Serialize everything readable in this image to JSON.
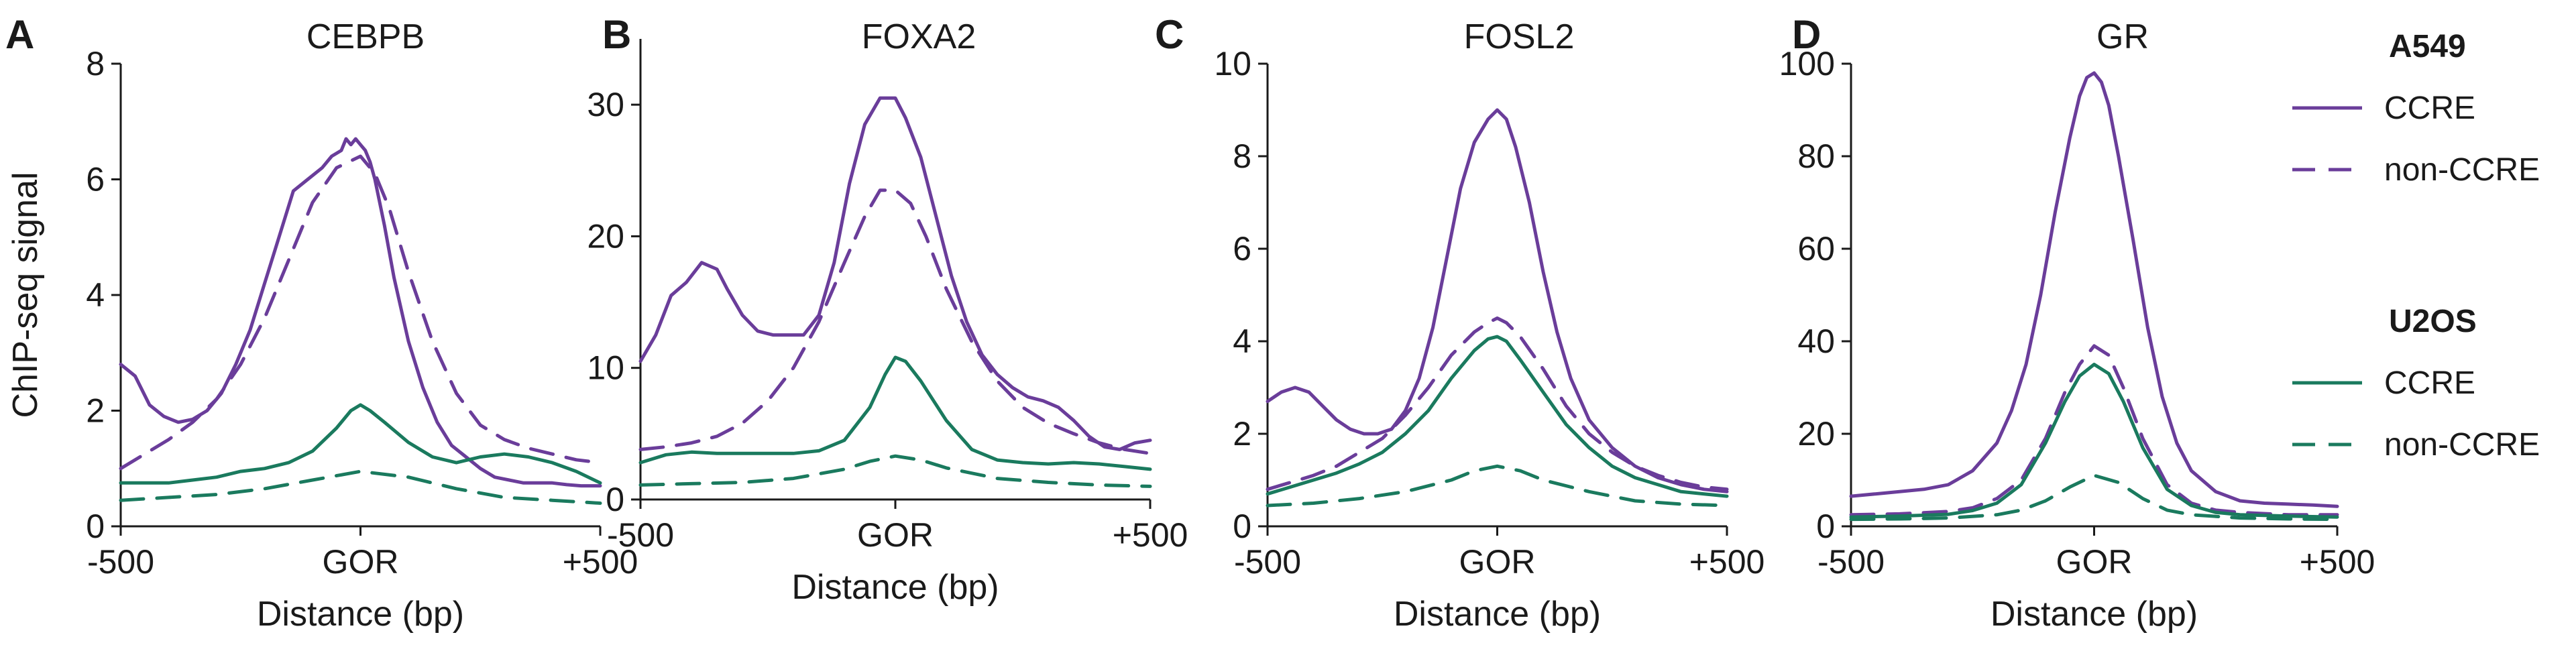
{
  "colors": {
    "A549": "#6a3d9a",
    "U2OS": "#1a7a5e",
    "axis": "#1a1a1a"
  },
  "legend": {
    "groups": [
      {
        "title": "A549",
        "color_key": "A549",
        "items": [
          {
            "label": "CCRE",
            "dash": "solid"
          },
          {
            "label": "non-CCRE",
            "dash": "dashed"
          }
        ]
      },
      {
        "title": "U2OS",
        "color_key": "U2OS",
        "items": [
          {
            "label": "CCRE",
            "dash": "solid"
          },
          {
            "label": "non-CCRE",
            "dash": "dashed"
          }
        ]
      }
    ]
  },
  "chart_data": [
    {
      "type": "line",
      "letter": "A",
      "title": "CEBPB",
      "xlabel": "Distance (bp)",
      "ylabel": "ChIP-seq signal",
      "xlim": [
        -500,
        500
      ],
      "ylim": [
        0,
        8
      ],
      "xticks": [
        -500,
        0,
        500
      ],
      "xtick_labels": [
        "-500",
        "GOR",
        "+500"
      ],
      "yticks": [
        0,
        2,
        4,
        6,
        8
      ],
      "ytick_labels": [
        "0",
        "2",
        "4",
        "6",
        "8"
      ],
      "series": [
        {
          "name": "A549 CCRE",
          "color_key": "A549",
          "dash": "solid",
          "x": [
            -500,
            -470,
            -440,
            -410,
            -380,
            -350,
            -320,
            -290,
            -260,
            -230,
            -200,
            -170,
            -140,
            -110,
            -80,
            -60,
            -40,
            -30,
            -20,
            -10,
            0,
            10,
            20,
            30,
            50,
            70,
            100,
            130,
            160,
            190,
            220,
            250,
            280,
            310,
            340,
            370,
            400,
            430,
            460,
            500
          ],
          "y": [
            2.8,
            2.6,
            2.1,
            1.9,
            1.8,
            1.85,
            2.0,
            2.3,
            2.8,
            3.4,
            4.2,
            5.0,
            5.8,
            6.0,
            6.2,
            6.4,
            6.5,
            6.7,
            6.6,
            6.7,
            6.6,
            6.5,
            6.3,
            6.0,
            5.2,
            4.3,
            3.2,
            2.4,
            1.8,
            1.4,
            1.2,
            1.0,
            0.85,
            0.8,
            0.75,
            0.75,
            0.75,
            0.72,
            0.7,
            0.7
          ]
        },
        {
          "name": "A549 non-CCRE",
          "color_key": "A549",
          "dash": "dashed",
          "x": [
            -500,
            -450,
            -400,
            -350,
            -300,
            -250,
            -200,
            -150,
            -100,
            -50,
            0,
            30,
            60,
            100,
            150,
            200,
            250,
            300,
            350,
            400,
            450,
            500
          ],
          "y": [
            1.0,
            1.25,
            1.5,
            1.8,
            2.2,
            2.8,
            3.6,
            4.6,
            5.6,
            6.2,
            6.4,
            6.1,
            5.5,
            4.4,
            3.2,
            2.3,
            1.75,
            1.5,
            1.35,
            1.25,
            1.15,
            1.1
          ]
        },
        {
          "name": "U2OS CCRE",
          "color_key": "U2OS",
          "dash": "solid",
          "x": [
            -500,
            -450,
            -400,
            -350,
            -300,
            -250,
            -200,
            -150,
            -100,
            -50,
            -20,
            0,
            20,
            50,
            100,
            150,
            200,
            250,
            300,
            350,
            400,
            450,
            500
          ],
          "y": [
            0.75,
            0.75,
            0.75,
            0.8,
            0.85,
            0.95,
            1.0,
            1.1,
            1.3,
            1.7,
            2.0,
            2.1,
            2.0,
            1.8,
            1.45,
            1.2,
            1.1,
            1.2,
            1.25,
            1.2,
            1.1,
            0.95,
            0.75
          ]
        },
        {
          "name": "U2OS non-CCRE",
          "color_key": "U2OS",
          "dash": "dashed",
          "x": [
            -500,
            -400,
            -300,
            -200,
            -100,
            0,
            100,
            200,
            300,
            400,
            500
          ],
          "y": [
            0.45,
            0.5,
            0.55,
            0.65,
            0.8,
            0.95,
            0.85,
            0.65,
            0.5,
            0.45,
            0.4
          ]
        }
      ]
    },
    {
      "type": "line",
      "letter": "B",
      "title": "FOXA2",
      "xlabel": "Distance (bp)",
      "ylabel": "",
      "xlim": [
        -500,
        500
      ],
      "ylim": [
        0,
        35
      ],
      "xticks": [
        -500,
        0,
        500
      ],
      "xtick_labels": [
        "-500",
        "GOR",
        "+500"
      ],
      "yticks": [
        0,
        10,
        20,
        30
      ],
      "ytick_labels": [
        "0",
        "10",
        "20",
        "30"
      ],
      "series": [
        {
          "name": "A549 CCRE",
          "color_key": "A549",
          "dash": "solid",
          "x": [
            -500,
            -470,
            -440,
            -410,
            -380,
            -350,
            -330,
            -300,
            -270,
            -240,
            -210,
            -180,
            -150,
            -120,
            -90,
            -60,
            -30,
            0,
            20,
            50,
            80,
            110,
            140,
            170,
            200,
            230,
            260,
            290,
            320,
            350,
            380,
            410,
            440,
            470,
            500
          ],
          "y": [
            10.5,
            12.5,
            15.5,
            16.5,
            18.0,
            17.5,
            16.0,
            14.0,
            12.8,
            12.5,
            12.5,
            12.5,
            14.0,
            18.0,
            24.0,
            28.5,
            30.5,
            30.5,
            29.0,
            26.0,
            21.5,
            17.0,
            13.5,
            11.0,
            9.5,
            8.5,
            7.8,
            7.5,
            7.0,
            6.0,
            4.8,
            4.0,
            3.8,
            4.3,
            4.5
          ]
        },
        {
          "name": "A549 non-CCRE",
          "color_key": "A549",
          "dash": "dashed",
          "x": [
            -500,
            -450,
            -400,
            -350,
            -300,
            -250,
            -200,
            -150,
            -100,
            -60,
            -30,
            0,
            30,
            60,
            100,
            150,
            200,
            250,
            300,
            350,
            400,
            450,
            500
          ],
          "y": [
            3.8,
            4.0,
            4.3,
            4.8,
            5.8,
            7.5,
            10.0,
            13.5,
            18.0,
            21.5,
            23.5,
            23.5,
            22.5,
            20.0,
            16.0,
            12.0,
            9.0,
            7.0,
            5.8,
            5.0,
            4.3,
            3.8,
            3.5
          ]
        },
        {
          "name": "U2OS CCRE",
          "color_key": "U2OS",
          "dash": "solid",
          "x": [
            -500,
            -450,
            -400,
            -350,
            -300,
            -250,
            -200,
            -150,
            -100,
            -50,
            -20,
            0,
            20,
            50,
            100,
            150,
            200,
            250,
            300,
            350,
            400,
            450,
            500
          ],
          "y": [
            2.8,
            3.4,
            3.6,
            3.5,
            3.5,
            3.5,
            3.5,
            3.7,
            4.5,
            7.0,
            9.5,
            10.8,
            10.5,
            9.0,
            6.0,
            3.8,
            3.0,
            2.8,
            2.7,
            2.8,
            2.7,
            2.5,
            2.3
          ]
        },
        {
          "name": "U2OS non-CCRE",
          "color_key": "U2OS",
          "dash": "dashed",
          "x": [
            -500,
            -400,
            -300,
            -200,
            -100,
            -50,
            0,
            50,
            100,
            200,
            300,
            400,
            500
          ],
          "y": [
            1.1,
            1.2,
            1.3,
            1.6,
            2.3,
            2.9,
            3.3,
            3.0,
            2.4,
            1.6,
            1.3,
            1.1,
            1.0
          ]
        }
      ]
    },
    {
      "type": "line",
      "letter": "C",
      "title": "FOSL2",
      "xlabel": "Distance (bp)",
      "ylabel": "",
      "xlim": [
        -500,
        500
      ],
      "ylim": [
        0,
        10
      ],
      "xticks": [
        -500,
        0,
        500
      ],
      "xtick_labels": [
        "-500",
        "GOR",
        "+500"
      ],
      "yticks": [
        0,
        2,
        4,
        6,
        8,
        10
      ],
      "ytick_labels": [
        "0",
        "2",
        "4",
        "6",
        "8",
        "10"
      ],
      "series": [
        {
          "name": "A549 CCRE",
          "color_key": "A549",
          "dash": "solid",
          "x": [
            -500,
            -470,
            -440,
            -410,
            -380,
            -350,
            -320,
            -290,
            -260,
            -230,
            -200,
            -170,
            -140,
            -110,
            -80,
            -50,
            -20,
            0,
            20,
            40,
            70,
            100,
            130,
            160,
            200,
            250,
            300,
            350,
            400,
            450,
            500
          ],
          "y": [
            2.7,
            2.9,
            3.0,
            2.9,
            2.6,
            2.3,
            2.1,
            2.0,
            2.0,
            2.1,
            2.5,
            3.2,
            4.3,
            5.8,
            7.3,
            8.3,
            8.8,
            9.0,
            8.8,
            8.2,
            7.0,
            5.5,
            4.2,
            3.2,
            2.3,
            1.7,
            1.3,
            1.05,
            0.9,
            0.8,
            0.75
          ]
        },
        {
          "name": "A549 non-CCRE",
          "color_key": "A549",
          "dash": "dashed",
          "x": [
            -500,
            -450,
            -400,
            -350,
            -300,
            -250,
            -200,
            -150,
            -100,
            -50,
            -20,
            0,
            20,
            50,
            100,
            150,
            200,
            250,
            300,
            350,
            400,
            450,
            500
          ],
          "y": [
            0.8,
            0.95,
            1.1,
            1.3,
            1.6,
            1.9,
            2.4,
            3.0,
            3.7,
            4.2,
            4.4,
            4.5,
            4.4,
            4.1,
            3.4,
            2.6,
            2.0,
            1.6,
            1.3,
            1.1,
            0.95,
            0.85,
            0.8
          ]
        },
        {
          "name": "U2OS CCRE",
          "color_key": "U2OS",
          "dash": "solid",
          "x": [
            -500,
            -450,
            -400,
            -350,
            -300,
            -250,
            -200,
            -150,
            -100,
            -50,
            -20,
            0,
            20,
            50,
            100,
            150,
            200,
            250,
            300,
            350,
            400,
            450,
            500
          ],
          "y": [
            0.7,
            0.85,
            1.0,
            1.15,
            1.35,
            1.6,
            2.0,
            2.5,
            3.2,
            3.8,
            4.05,
            4.1,
            4.0,
            3.6,
            2.9,
            2.2,
            1.7,
            1.3,
            1.05,
            0.9,
            0.75,
            0.7,
            0.65
          ]
        },
        {
          "name": "U2OS non-CCRE",
          "color_key": "U2OS",
          "dash": "dashed",
          "x": [
            -500,
            -400,
            -300,
            -200,
            -100,
            -50,
            0,
            50,
            100,
            200,
            300,
            400,
            500
          ],
          "y": [
            0.45,
            0.5,
            0.6,
            0.75,
            1.0,
            1.2,
            1.3,
            1.2,
            1.0,
            0.75,
            0.55,
            0.48,
            0.45
          ]
        }
      ]
    },
    {
      "type": "line",
      "letter": "D",
      "title": "GR",
      "xlabel": "Distance (bp)",
      "ylabel": "",
      "xlim": [
        -500,
        500
      ],
      "ylim": [
        0,
        100
      ],
      "xticks": [
        -500,
        0,
        500
      ],
      "xtick_labels": [
        "-500",
        "GOR",
        "+500"
      ],
      "yticks": [
        0,
        20,
        40,
        60,
        80,
        100
      ],
      "ytick_labels": [
        "0",
        "20",
        "40",
        "60",
        "80",
        "100"
      ],
      "series": [
        {
          "name": "A549 CCRE",
          "color_key": "A549",
          "dash": "solid",
          "x": [
            -500,
            -450,
            -400,
            -350,
            -300,
            -250,
            -200,
            -170,
            -140,
            -110,
            -80,
            -50,
            -30,
            -15,
            0,
            15,
            30,
            50,
            80,
            110,
            140,
            170,
            200,
            250,
            300,
            350,
            400,
            450,
            500
          ],
          "y": [
            6.5,
            7.0,
            7.5,
            8.0,
            9.0,
            12.0,
            18.0,
            25.0,
            35.0,
            50.0,
            68.0,
            84.0,
            93.0,
            97.0,
            98.0,
            96.0,
            91.0,
            80.0,
            62.0,
            43.0,
            28.0,
            18.0,
            12.0,
            7.5,
            5.5,
            5.0,
            4.8,
            4.6,
            4.3
          ]
        },
        {
          "name": "A549 non-CCRE",
          "color_key": "A549",
          "dash": "dashed",
          "x": [
            -500,
            -400,
            -300,
            -250,
            -200,
            -150,
            -100,
            -60,
            -30,
            0,
            30,
            60,
            100,
            150,
            200,
            250,
            300,
            400,
            500
          ],
          "y": [
            2.5,
            2.7,
            3.2,
            4.0,
            6.0,
            10.0,
            19.0,
            29.0,
            35.0,
            39.0,
            37.0,
            30.0,
            19.0,
            9.0,
            5.0,
            3.5,
            3.0,
            2.5,
            2.5
          ]
        },
        {
          "name": "U2OS CCRE",
          "color_key": "U2OS",
          "dash": "solid",
          "x": [
            -500,
            -400,
            -300,
            -250,
            -200,
            -150,
            -100,
            -60,
            -30,
            0,
            30,
            60,
            100,
            150,
            200,
            250,
            300,
            400,
            500
          ],
          "y": [
            2.0,
            2.2,
            2.6,
            3.4,
            5.0,
            9.0,
            18.0,
            27.0,
            32.5,
            35.0,
            33.0,
            27.0,
            17.0,
            8.0,
            4.5,
            3.0,
            2.5,
            2.2,
            2.0
          ]
        },
        {
          "name": "U2OS non-CCRE",
          "color_key": "U2OS",
          "dash": "dashed",
          "x": [
            -500,
            -400,
            -300,
            -200,
            -150,
            -100,
            -50,
            0,
            50,
            100,
            150,
            200,
            300,
            400,
            500
          ],
          "y": [
            1.5,
            1.6,
            1.8,
            2.5,
            3.5,
            5.5,
            8.5,
            11.0,
            9.5,
            6.0,
            3.5,
            2.5,
            1.8,
            1.6,
            1.5
          ]
        }
      ]
    }
  ]
}
